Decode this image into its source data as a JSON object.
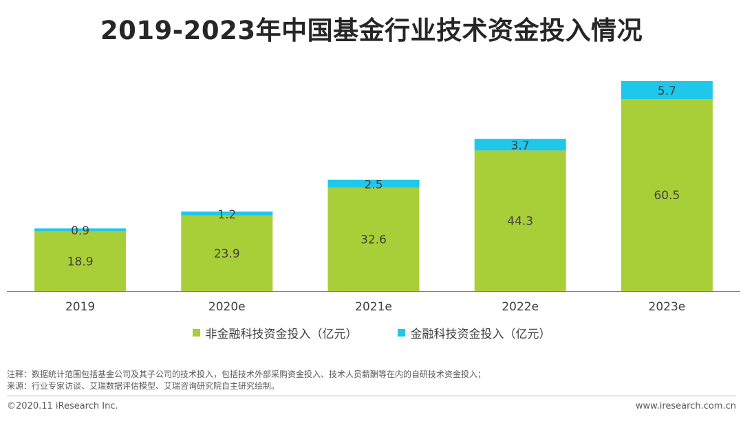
{
  "title": "2019-2023年中国基金行业技术资金投入情况",
  "colors": {
    "non_fintech": "#a9cf38",
    "fintech": "#1fc7ea",
    "axis": "#7f7f7f"
  },
  "chart_data": {
    "type": "bar",
    "stacked": true,
    "title": "2019-2023年中国基金行业技术资金投入情况",
    "categories": [
      "2019",
      "2020e",
      "2021e",
      "2022e",
      "2023e"
    ],
    "series": [
      {
        "name": "非金融科技资金投入（亿元）",
        "values": [
          18.9,
          23.9,
          32.6,
          44.3,
          60.5
        ]
      },
      {
        "name": "金融科技资金投入（亿元）",
        "values": [
          0.9,
          1.2,
          2.5,
          3.7,
          5.7
        ]
      }
    ],
    "xlabel": "",
    "ylabel": "",
    "ylim": [
      0,
      66.2
    ],
    "grid": false,
    "legend": "bottom"
  },
  "legend": [
    {
      "label": "非金融科技资金投入（亿元）"
    },
    {
      "label": "金融科技资金投入（亿元）"
    }
  ],
  "notes": {
    "note": "注释：数据统计范围包括基金公司及其子公司的技术投入，包括技术外部采购资金投入、技术人员薪酬等在内的自研技术资金投入；",
    "source": "来源：行业专家访谈、艾瑞数据评估模型、艾瑞咨询研究院自主研究绘制。"
  },
  "footer": {
    "copyright": "©2020.11 iResearch Inc.",
    "website": "www.iresearch.com.cn"
  }
}
